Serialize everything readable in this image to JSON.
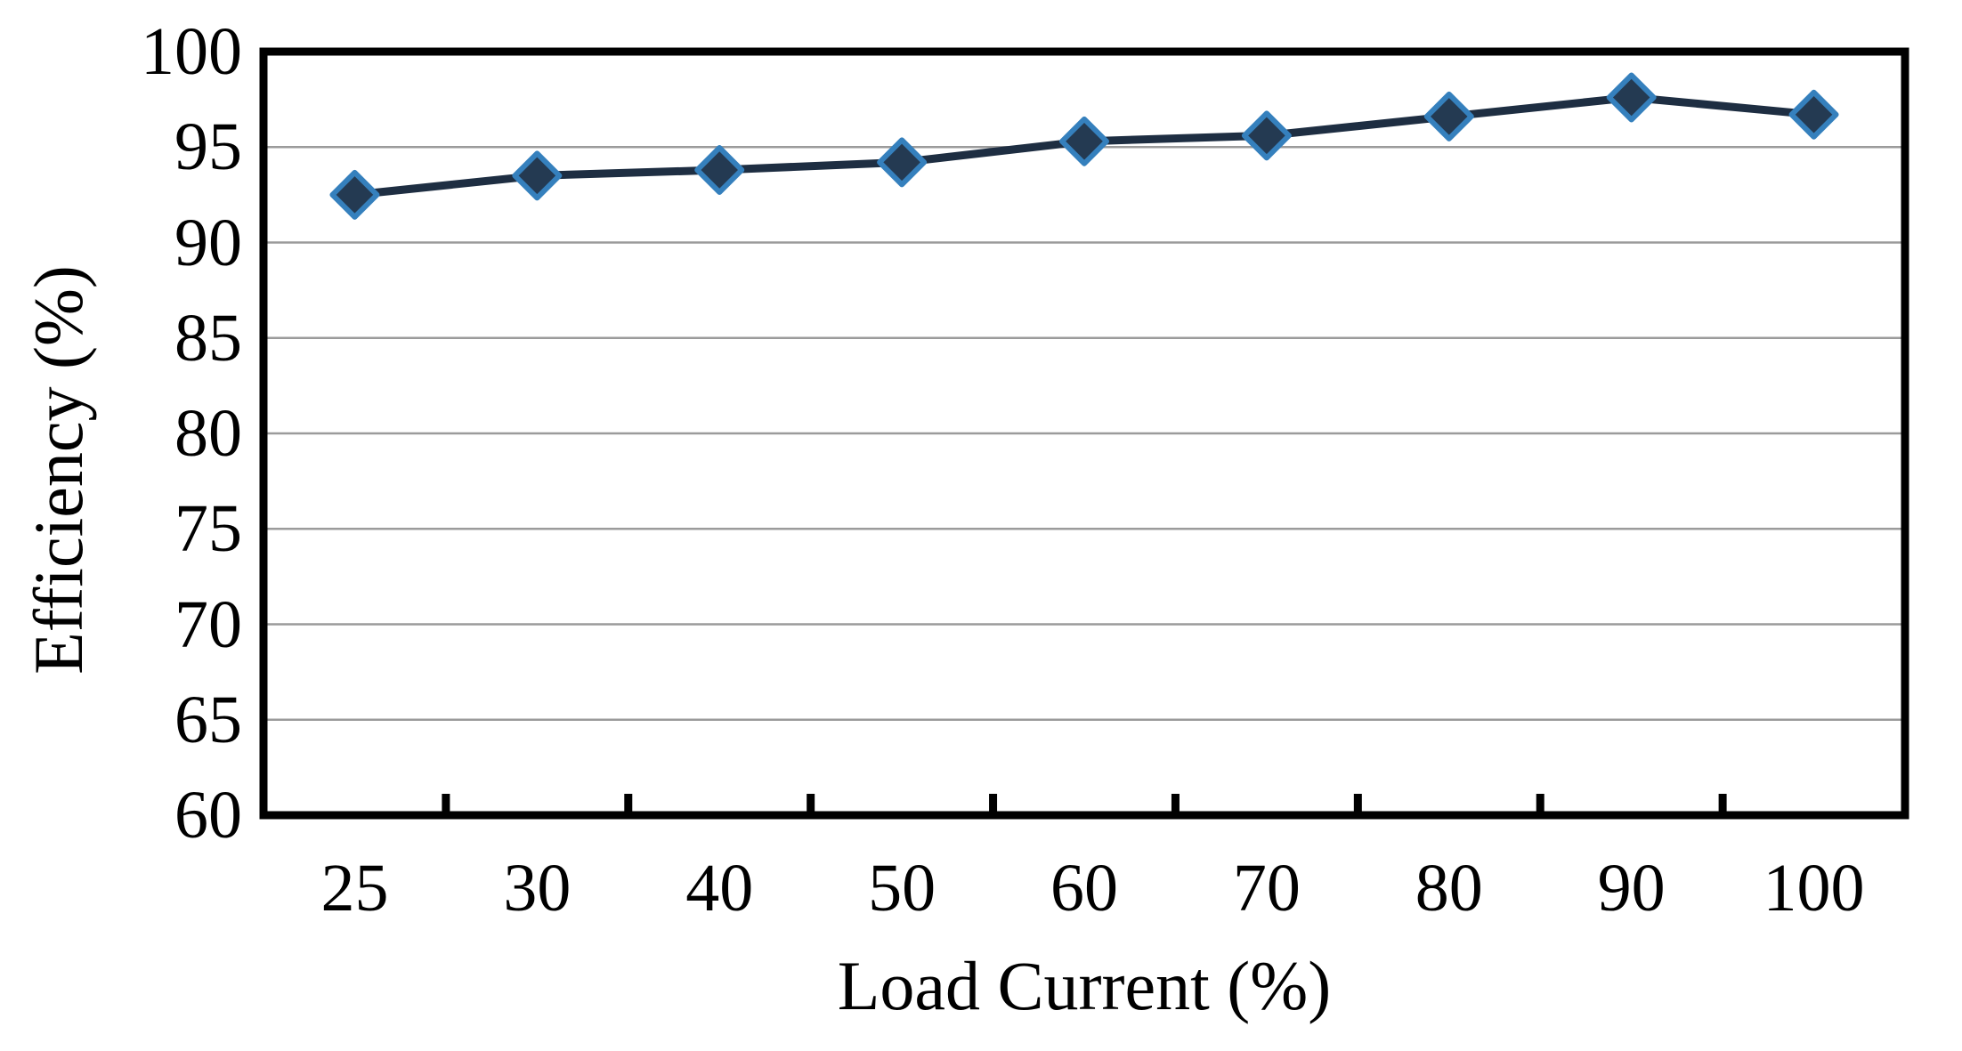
{
  "figure": {
    "background": "#ffffff"
  },
  "chart_data": {
    "type": "line",
    "title": "",
    "xlabel": "Load Current (%)",
    "ylabel": "Efficiency (%)",
    "categories": [
      "25",
      "30",
      "40",
      "50",
      "60",
      "70",
      "80",
      "90",
      "100"
    ],
    "series": [
      {
        "name": "Efficiency",
        "values": [
          92.5,
          93.5,
          93.8,
          94.2,
          95.3,
          95.6,
          96.6,
          97.6,
          96.7
        ]
      }
    ],
    "ylim": [
      60,
      100
    ],
    "yticks": [
      60,
      65,
      70,
      75,
      80,
      85,
      90,
      95,
      100
    ],
    "grid": "horizontal",
    "legend": "none",
    "marker": "diamond",
    "colors": {
      "line": "#1e2e42",
      "marker_fill": "#243a52",
      "marker_stroke": "#3580bd",
      "gridline": "#9b9b9b",
      "axis_border": "#000000",
      "text": "#000000"
    }
  }
}
